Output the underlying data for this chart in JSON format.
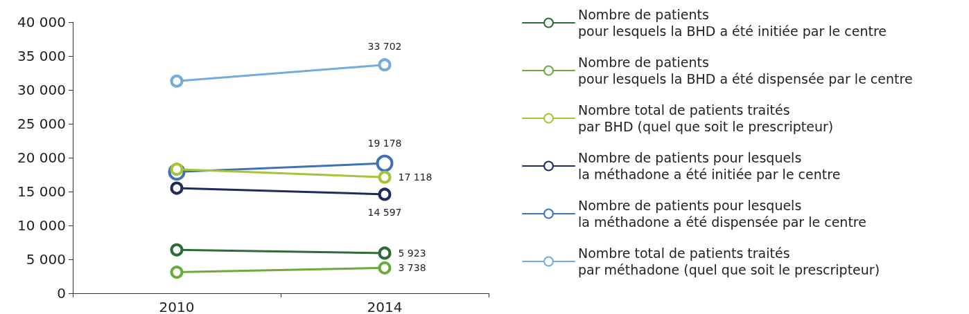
{
  "chart_data": {
    "type": "line",
    "categories": [
      "2010",
      "2014"
    ],
    "series": [
      {
        "name": "Nombre de patients\npour lesquels la BHD a été initiée par le centre",
        "color": "#2e6b35",
        "values": [
          6400,
          5923
        ],
        "value_labels": [
          null,
          "5 923"
        ]
      },
      {
        "name": "Nombre de patients\npour lesquels la BHD a été dispensée par le centre",
        "color": "#6aab3c",
        "values": [
          3100,
          3738
        ],
        "value_labels": [
          null,
          "3 738"
        ]
      },
      {
        "name": "Nombre total de patients traités\npar BHD (quel que soit le prescripteur)",
        "color": "#a6c43a",
        "values": [
          18300,
          17118
        ],
        "value_labels": [
          null,
          "17 118"
        ]
      },
      {
        "name": "Nombre de patients pour lesquels\nla méthadone a été initiée par le centre",
        "color": "#1f2a5e",
        "values": [
          15500,
          14597
        ],
        "value_labels": [
          null,
          "14 597"
        ]
      },
      {
        "name": "Nombre de patients pour lesquels\nla méthadone a été dispensée par le centre",
        "color": "#3f72b5",
        "values": [
          17900,
          19178
        ],
        "value_labels": [
          null,
          "19 178"
        ]
      },
      {
        "name": "Nombre total de patients traités\npar méthadone (quel que soit le prescripteur)",
        "color": "#72abdc",
        "values": [
          31300,
          33702
        ],
        "value_labels": [
          null,
          "33 702"
        ]
      }
    ],
    "ylim": [
      0,
      40000
    ],
    "yticks": [
      0,
      5000,
      10000,
      15000,
      20000,
      25000,
      30000,
      35000,
      40000
    ],
    "grid": false,
    "legend": "right",
    "marker": "circle",
    "line_style": "solid"
  }
}
